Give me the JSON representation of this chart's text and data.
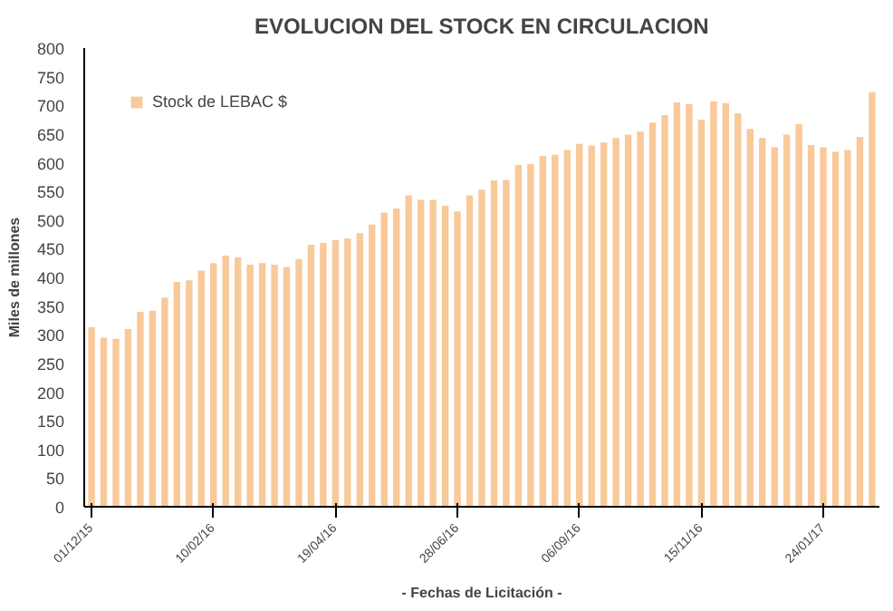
{
  "chart_data": {
    "type": "bar",
    "title": "EVOLUCION DEL STOCK EN CIRCULACION",
    "xlabel": "- Fechas de Licitación -",
    "ylabel": "Miles de millones",
    "categories": [
      "01/12/15",
      null,
      null,
      null,
      null,
      null,
      null,
      null,
      null,
      null,
      "10/02/16",
      null,
      null,
      null,
      null,
      null,
      null,
      null,
      null,
      null,
      "19/04/16",
      null,
      null,
      null,
      null,
      null,
      null,
      null,
      null,
      null,
      "28/06/16",
      null,
      null,
      null,
      null,
      null,
      null,
      null,
      null,
      null,
      "06/09/16",
      null,
      null,
      null,
      null,
      null,
      null,
      null,
      null,
      null,
      "15/11/16",
      null,
      null,
      null,
      null,
      null,
      null,
      null,
      null,
      null,
      "24/01/17",
      null,
      null,
      null,
      null
    ],
    "series": [
      {
        "name": "Stock de LEBAC $",
        "color": "#f9c99a",
        "values": [
          313,
          295,
          293,
          310,
          340,
          342,
          365,
          392,
          395,
          412,
          425,
          438,
          435,
          422,
          425,
          422,
          418,
          432,
          457,
          460,
          465,
          468,
          477,
          492,
          513,
          520,
          543,
          535,
          535,
          525,
          515,
          543,
          553,
          569,
          570,
          596,
          598,
          612,
          614,
          622,
          633,
          630,
          635,
          643,
          649,
          654,
          670,
          683,
          705,
          702,
          675,
          707,
          704,
          686,
          659,
          643,
          627,
          649,
          667,
          631,
          627,
          619,
          622,
          645,
          723
        ]
      }
    ],
    "ylim": [
      0,
      800
    ],
    "yticks": [
      0,
      50,
      100,
      150,
      200,
      250,
      300,
      350,
      400,
      450,
      500,
      550,
      600,
      650,
      700,
      750,
      800
    ],
    "grid": false,
    "legend": "top left"
  }
}
